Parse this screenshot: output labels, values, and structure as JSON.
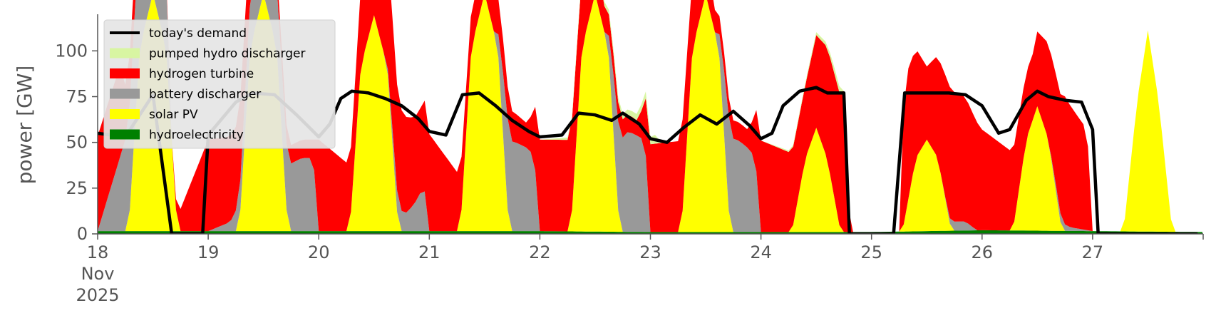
{
  "chart_data": {
    "type": "area",
    "title": "",
    "xlabel": "",
    "ylabel": "power [GW]",
    "grid": false,
    "legend_position": "top-left",
    "x_ticks": [
      {
        "day": 18,
        "label": "18",
        "month_label": "Nov",
        "year_label": "2025"
      },
      {
        "day": 19,
        "label": "19"
      },
      {
        "day": 20,
        "label": "20"
      },
      {
        "day": 21,
        "label": "21"
      },
      {
        "day": 22,
        "label": "22"
      },
      {
        "day": 23,
        "label": "23"
      },
      {
        "day": 24,
        "label": "24"
      },
      {
        "day": 25,
        "label": "25"
      },
      {
        "day": 26,
        "label": "26"
      },
      {
        "day": 27,
        "label": "27"
      }
    ],
    "x_range": [
      "2025-11-18",
      "2025-11-28"
    ],
    "ylim": [
      0,
      120
    ],
    "y_ticks": [
      0,
      25,
      50,
      75,
      100
    ],
    "legend": [
      {
        "name": "today's demand",
        "color": "#000000",
        "marker": "line"
      },
      {
        "name": "pumped hydro discharger",
        "color": "#d8f5a2",
        "marker": "patch"
      },
      {
        "name": "hydrogen turbine",
        "color": "#ff0000",
        "marker": "patch"
      },
      {
        "name": "battery discharger",
        "color": "#999999",
        "marker": "patch"
      },
      {
        "name": "solar PV",
        "color": "#ffff00",
        "marker": "patch"
      },
      {
        "name": "hydroelectricity",
        "color": "#008000",
        "marker": "patch"
      }
    ],
    "demand_series": {
      "name": "today's demand",
      "color": "#000000",
      "x_day": [
        18.0,
        18.25,
        18.5,
        18.67,
        18.75,
        18.95,
        19.0,
        19.25,
        19.4,
        19.6,
        19.8,
        20.0,
        20.1,
        20.2,
        20.3,
        20.45,
        20.6,
        20.75,
        20.9,
        21.0,
        21.15,
        21.3,
        21.45,
        21.6,
        21.75,
        21.9,
        22.0,
        22.2,
        22.35,
        22.5,
        22.65,
        22.75,
        22.9,
        23.0,
        23.15,
        23.3,
        23.45,
        23.6,
        23.75,
        23.9,
        24.0,
        24.1,
        24.2,
        24.35,
        24.5,
        24.6,
        24.75,
        24.8,
        25.2,
        25.3,
        25.5,
        25.7,
        25.85,
        26.0,
        26.15,
        26.25,
        26.4,
        26.5,
        26.6,
        26.75,
        26.9,
        27.0,
        27.05,
        27.95
      ],
      "y": [
        55,
        53,
        76,
        0,
        0,
        0,
        54,
        72,
        77,
        76,
        65,
        53,
        60,
        74,
        78,
        77,
        74,
        70,
        63,
        56,
        54,
        76,
        77,
        70,
        62,
        56,
        53,
        54,
        66,
        65,
        62,
        66,
        60,
        52,
        50,
        58,
        65,
        60,
        67,
        59,
        52,
        55,
        70,
        78,
        80,
        77,
        77,
        0,
        0,
        77,
        77,
        77,
        76,
        70,
        55,
        57,
        73,
        78,
        75,
        73,
        72,
        57,
        0,
        0
      ]
    },
    "stack_layers": [
      {
        "name": "hydroelectricity",
        "color": "#008000",
        "x_day": [
          18.0,
          19.0,
          20.0,
          21.0,
          22.0,
          23.0,
          24.0,
          25.0,
          26.0,
          27.0,
          28.0
        ],
        "values": [
          1.5,
          1.5,
          1.5,
          1.5,
          1.5,
          1.0,
          1.0,
          1.0,
          2.0,
          1.5,
          1.0
        ]
      },
      {
        "name": "solar PV",
        "color": "#ffff00",
        "x_day": [
          18.0,
          18.28,
          18.38,
          18.5,
          18.62,
          18.72,
          19.28,
          19.38,
          19.5,
          19.62,
          19.72,
          20.28,
          20.38,
          20.5,
          20.62,
          20.72,
          21.28,
          21.38,
          21.5,
          21.62,
          21.72,
          22.28,
          22.38,
          22.5,
          22.62,
          22.72,
          23.28,
          23.38,
          23.5,
          23.62,
          23.72,
          24.28,
          24.4,
          24.5,
          24.6,
          24.72,
          25.28,
          25.4,
          25.5,
          25.6,
          25.72,
          26.28,
          26.4,
          26.5,
          26.6,
          26.72,
          27.28,
          27.4,
          27.5,
          27.6,
          27.72,
          28.0
        ],
        "values": [
          0,
          0,
          100,
          130,
          100,
          0,
          0,
          100,
          130,
          100,
          0,
          0,
          90,
          118,
          90,
          0,
          0,
          100,
          130,
          100,
          0,
          0,
          100,
          130,
          100,
          0,
          0,
          100,
          130,
          100,
          0,
          0,
          40,
          57,
          40,
          0,
          0,
          40,
          50,
          40,
          0,
          0,
          50,
          68,
          50,
          0,
          0,
          70,
          110,
          70,
          0,
          0
        ]
      },
      {
        "name": "battery discharger",
        "color": "#999999",
        "x_day": [
          18.0,
          18.3,
          18.45,
          18.6,
          18.65,
          19.0,
          19.2,
          19.4,
          19.65,
          19.75,
          19.85,
          19.95,
          20.0,
          20.6,
          20.7,
          20.8,
          20.9,
          20.95,
          21.0,
          21.6,
          21.7,
          21.8,
          21.9,
          21.95,
          22.0,
          22.6,
          22.7,
          22.8,
          22.9,
          22.95,
          23.0,
          23.6,
          23.7,
          23.8,
          23.9,
          23.95,
          24.0,
          25.65,
          25.75,
          25.85,
          25.95,
          26.6,
          26.7,
          26.8,
          26.9,
          27.0
        ],
        "values": [
          0,
          60,
          75,
          70,
          0,
          0,
          5,
          30,
          35,
          37,
          40,
          40,
          0,
          0,
          12,
          10,
          18,
          26,
          0,
          0,
          50,
          48,
          45,
          40,
          0,
          0,
          48,
          55,
          52,
          50,
          0,
          0,
          52,
          50,
          45,
          40,
          0,
          0,
          5,
          5,
          0,
          0,
          5,
          2,
          1,
          0
        ]
      },
      {
        "name": "hydrogen turbine",
        "color": "#ff0000",
        "x_day": [
          18.0,
          18.2,
          18.25,
          18.67,
          19.0,
          19.3,
          19.6,
          19.95,
          20.0,
          20.3,
          20.6,
          20.9,
          21.0,
          21.4,
          21.6,
          21.9,
          22.0,
          22.3,
          22.6,
          22.9,
          23.0,
          23.3,
          23.6,
          23.9,
          24.0,
          24.4,
          24.75,
          24.8,
          25.25,
          25.3,
          25.4,
          25.5,
          25.7,
          25.85,
          26.0,
          26.45,
          26.75,
          26.95,
          27.0,
          28.0
        ],
        "values": [
          52,
          50,
          30,
          0,
          50,
          45,
          10,
          10,
          50,
          35,
          65,
          45,
          53,
          20,
          20,
          13,
          50,
          50,
          12,
          8,
          48,
          50,
          10,
          10,
          50,
          40,
          77,
          0,
          0,
          77,
          60,
          40,
          72,
          68,
          55,
          35,
          70,
          55,
          0,
          0
        ]
      },
      {
        "name": "pumped hydro discharger",
        "color": "#d8f5a2",
        "x_day": [
          18.0,
          22.0,
          22.4,
          22.8,
          23.0,
          23.05,
          23.1,
          24.0,
          24.6,
          24.7,
          24.75,
          25.0,
          28.0
        ],
        "values": [
          0,
          0,
          2,
          3,
          4,
          5,
          0,
          0,
          2,
          4,
          0,
          0,
          0
        ]
      }
    ]
  }
}
